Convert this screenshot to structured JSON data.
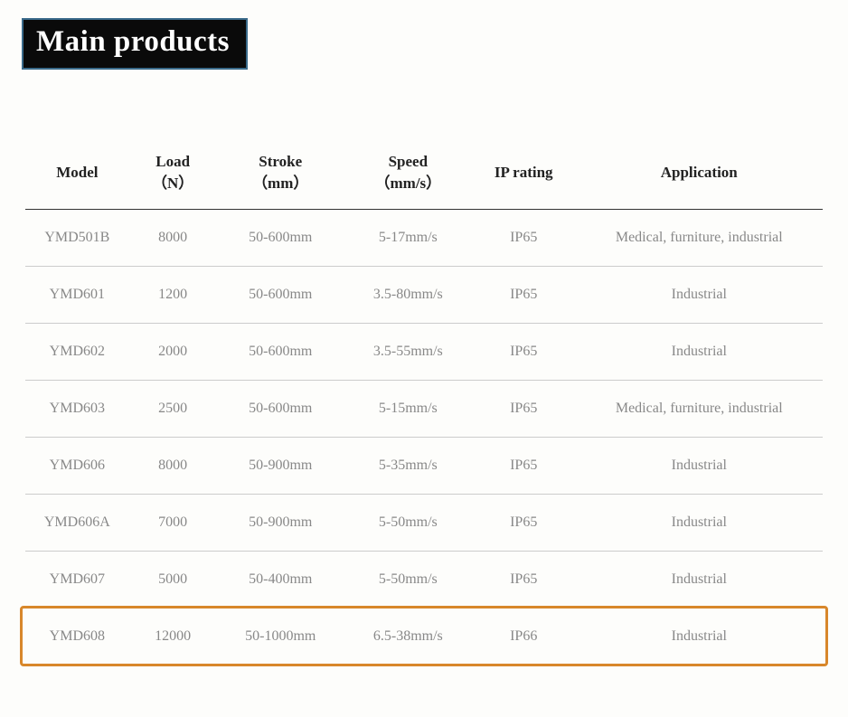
{
  "title": "Main products",
  "title_style": {
    "background": "#0a0a0a",
    "border_color": "#3a6a8a",
    "text_color": "#ffffff",
    "fontsize": 33
  },
  "table": {
    "type": "table",
    "header_color": "#222222",
    "cell_color": "#888888",
    "header_border_color": "#333333",
    "row_border_color": "#cccccc",
    "header_fontsize": 17,
    "cell_fontsize": 16,
    "columns": [
      {
        "key": "model",
        "label_line1": "Model",
        "label_line2": "",
        "width_pct": 13
      },
      {
        "key": "load",
        "label_line1": "Load",
        "label_line2": "（N）",
        "width_pct": 11
      },
      {
        "key": "stroke",
        "label_line1": "Stroke",
        "label_line2": "（mm）",
        "width_pct": 16
      },
      {
        "key": "speed",
        "label_line1": "Speed",
        "label_line2": "（mm/s）",
        "width_pct": 16
      },
      {
        "key": "ip",
        "label_line1": "IP rating",
        "label_line2": "",
        "width_pct": 13
      },
      {
        "key": "app",
        "label_line1": "Application",
        "label_line2": "",
        "width_pct": 31
      }
    ],
    "rows": [
      {
        "model": "YMD501B",
        "load": "8000",
        "stroke": "50-600mm",
        "speed": "5-17mm/s",
        "ip": "IP65",
        "app": "Medical, furniture, industrial"
      },
      {
        "model": "YMD601",
        "load": "1200",
        "stroke": "50-600mm",
        "speed": "3.5-80mm/s",
        "ip": "IP65",
        "app": "Industrial"
      },
      {
        "model": "YMD602",
        "load": "2000",
        "stroke": "50-600mm",
        "speed": "3.5-55mm/s",
        "ip": "IP65",
        "app": "Industrial"
      },
      {
        "model": "YMD603",
        "load": "2500",
        "stroke": "50-600mm",
        "speed": "5-15mm/s",
        "ip": "IP65",
        "app": "Medical, furniture, industrial"
      },
      {
        "model": "YMD606",
        "load": "8000",
        "stroke": "50-900mm",
        "speed": "5-35mm/s",
        "ip": "IP65",
        "app": "Industrial"
      },
      {
        "model": "YMD606A",
        "load": "7000",
        "stroke": "50-900mm",
        "speed": "5-50mm/s",
        "ip": "IP65",
        "app": "Industrial"
      },
      {
        "model": "YMD607",
        "load": "5000",
        "stroke": "50-400mm",
        "speed": "5-50mm/s",
        "ip": "IP65",
        "app": "Industrial"
      },
      {
        "model": "YMD608",
        "load": "12000",
        "stroke": "50-1000mm",
        "speed": "6.5-38mm/s",
        "ip": "IP66",
        "app": "Industrial"
      }
    ],
    "highlight": {
      "row_index": 7,
      "border_color": "#d8872b",
      "border_width": 3,
      "border_radius": 4
    }
  }
}
